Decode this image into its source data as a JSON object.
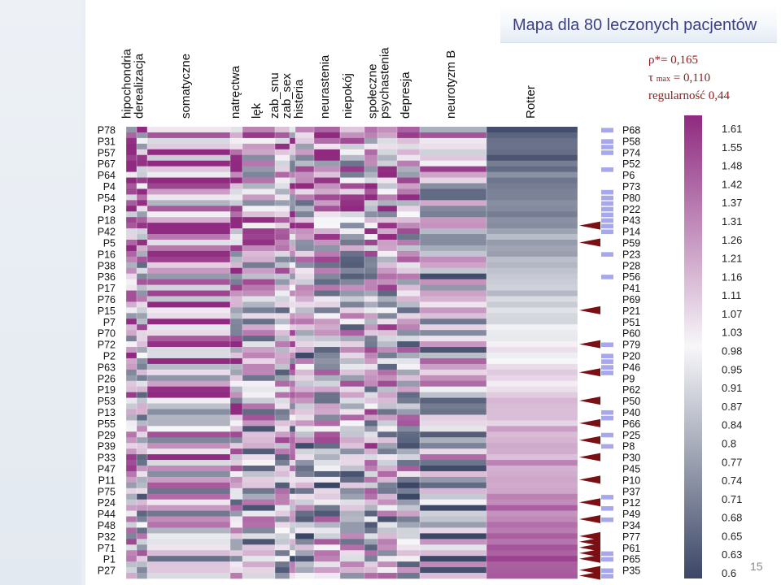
{
  "slide": {
    "title": "Mapa dla 80 leczonych pacjentów",
    "page_number": "15",
    "stats": {
      "rho": "ρ*= 0,165",
      "tau_prefix": "τ ",
      "tau_sub": "max",
      "tau_value": " = 0,110",
      "regularity": "regularność  0,44"
    }
  },
  "colors": {
    "low": "#3c4766",
    "mid": "#f7f7f9",
    "high": "#8f2a80",
    "marker_triangle": "#7a0f14",
    "marker_bar": "#a7a7ee",
    "background_stripe": "#e9eef4"
  },
  "chart_data": {
    "type": "heatmap",
    "title": "Mapa dla 80 leczonych pacjentów",
    "columns": [
      "hipochondria",
      "derealizacja",
      "somatyczne",
      "natręctwa",
      "lęk",
      "zab_snu",
      "zab_sex",
      "histeria",
      "neurastenia",
      "niepokój",
      "społeczne",
      "psychastenia",
      "depresja",
      "neurotyzm B",
      "Rotter"
    ],
    "column_header_lines": [
      [
        "hipochondria",
        "derealizacja"
      ],
      [
        "somatyczne"
      ],
      [
        "natręctwa"
      ],
      [
        "lęk"
      ],
      [
        "zab_snu",
        "zab_sex",
        "histeria"
      ],
      [
        "neurastenia"
      ],
      [
        "niepokój"
      ],
      [
        "społeczne",
        "psychastenia"
      ],
      [
        "depresja"
      ],
      [
        "neurotyzm B"
      ],
      [
        "Rotter"
      ]
    ],
    "row_labels_left": [
      "P78",
      "P31",
      "P57",
      "P67",
      "P64",
      "P4",
      "P54",
      "P3",
      "P18",
      "P42",
      "P5",
      "P16",
      "P38",
      "P36",
      "P17",
      "P76",
      "P15",
      "P7",
      "P70",
      "P72",
      "P2",
      "P63",
      "P26",
      "P19",
      "P53",
      "P13",
      "P55",
      "P29",
      "P39",
      "P33",
      "P47",
      "P11",
      "P75",
      "P24",
      "P44",
      "P48",
      "P32",
      "P71",
      "P1",
      "P27"
    ],
    "row_labels_right": [
      "P68",
      "P58",
      "P74",
      "P52",
      "P6",
      "P73",
      "P80",
      "P22",
      "P43",
      "P14",
      "P59",
      "P23",
      "P28",
      "P56",
      "P41",
      "P69",
      "P21",
      "P51",
      "P60",
      "P79",
      "P20",
      "P46",
      "P9",
      "P62",
      "P50",
      "P40",
      "P66",
      "P25",
      "P8",
      "P30",
      "P45",
      "P10",
      "P37",
      "P12",
      "P49",
      "P34",
      "P77",
      "P61",
      "P65",
      "P35"
    ],
    "rows": 80,
    "colorbar": {
      "ticks": [
        "1.61",
        "1.55",
        "1.48",
        "1.42",
        "1.37",
        "1.31",
        "1.26",
        "1.21",
        "1.16",
        "1.11",
        "1.07",
        "1.03",
        "0.98",
        "0.95",
        "0.91",
        "0.87",
        "0.84",
        "0.8",
        "0.77",
        "0.74",
        "0.71",
        "0.68",
        "0.65",
        "0.63",
        "0.6"
      ],
      "range": [
        0.6,
        1.61
      ]
    },
    "marker_triangles_rows": [
      17,
      20,
      32,
      38,
      43,
      48,
      52,
      55,
      58,
      62,
      66,
      69,
      72,
      73,
      74,
      75,
      76,
      78,
      79
    ],
    "marker_bars_rows": [
      0,
      2,
      3,
      4,
      7,
      11,
      12,
      13,
      14,
      15,
      16,
      17,
      18,
      22,
      26,
      38,
      40,
      41,
      42,
      43,
      50,
      51,
      54,
      56,
      65,
      67,
      69,
      75,
      76,
      78,
      79
    ]
  }
}
